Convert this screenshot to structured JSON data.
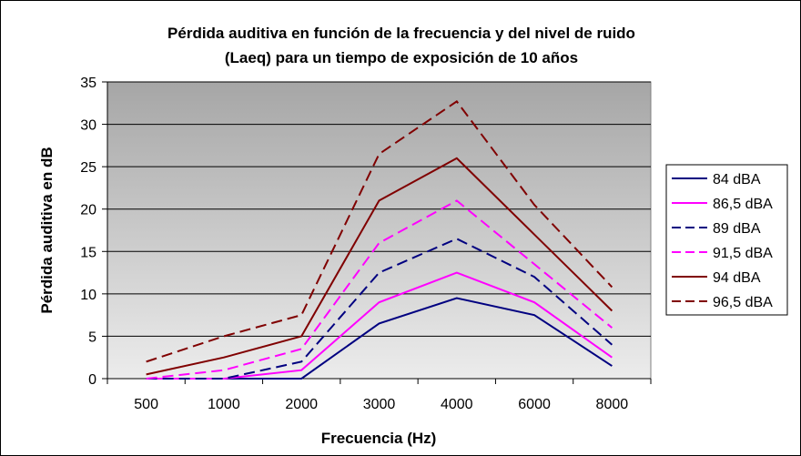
{
  "chart_data": {
    "type": "line",
    "title_lines": [
      "Pérdida auditiva en función de la frecuencia y del nivel de ruido",
      "(Laeq) para un tiempo de exposición de 10 años"
    ],
    "xlabel": "Frecuencia (Hz)",
    "ylabel": "Pérdida auditiva en dB",
    "categories": [
      "500",
      "1000",
      "2000",
      "3000",
      "4000",
      "6000",
      "8000"
    ],
    "ylim": [
      0,
      35
    ],
    "yticks": [
      "0",
      "5",
      "10",
      "15",
      "20",
      "25",
      "30",
      "35"
    ],
    "grid": true,
    "legend_position": "right",
    "plot_background": "gradient gray",
    "series": [
      {
        "name": "84 dBA",
        "color": "#000080",
        "dash": "solid",
        "values": [
          0,
          0,
          0,
          6.5,
          9.5,
          7.5,
          1.5
        ]
      },
      {
        "name": "86,5 dBA",
        "color": "#ff00ff",
        "dash": "solid",
        "values": [
          0,
          0,
          1,
          9,
          12.5,
          9,
          2.5
        ]
      },
      {
        "name": "89 dBA",
        "color": "#000080",
        "dash": "dashed",
        "values": [
          0,
          0,
          2,
          12.5,
          16.5,
          12,
          4
        ]
      },
      {
        "name": "91,5 dBA",
        "color": "#ff00ff",
        "dash": "dashed",
        "values": [
          0,
          1,
          3.5,
          16,
          21,
          13.5,
          6
        ]
      },
      {
        "name": "94 dBA",
        "color": "#800000",
        "dash": "solid",
        "values": [
          0.5,
          2.5,
          5,
          21,
          26,
          17,
          8
        ]
      },
      {
        "name": "96,5 dBA",
        "color": "#800000",
        "dash": "dashed",
        "values": [
          2,
          5,
          7.5,
          26.5,
          32.7,
          20.5,
          10.8
        ]
      }
    ]
  }
}
